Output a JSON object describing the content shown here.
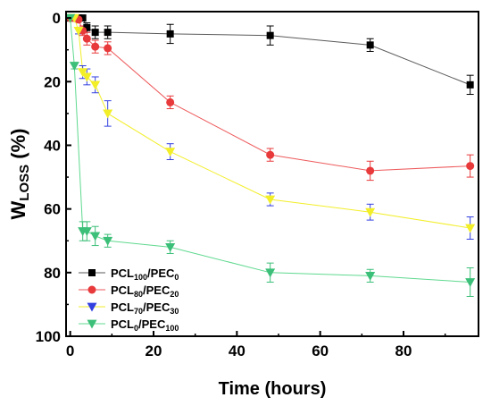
{
  "chart_data": {
    "type": "line",
    "xlabel": "Time (hours)",
    "ylabel_main": "W",
    "ylabel_sub": "LOSS",
    "ylabel_tail": " (%)",
    "xlim": [
      -1,
      98
    ],
    "ylim": [
      100,
      -2
    ],
    "y_axis_inverted": true,
    "x_ticks": [
      0,
      20,
      40,
      60,
      80
    ],
    "x_tick_labels": [
      "0",
      "20",
      "40",
      "60",
      "80"
    ],
    "y_ticks": [
      0,
      20,
      40,
      60,
      80,
      100
    ],
    "y_tick_labels": [
      "0",
      "20",
      "40",
      "60",
      "80",
      "100"
    ],
    "grid": false,
    "legend_position": "lower-left",
    "series": [
      {
        "key": "pcl100",
        "name_parts": [
          "PCL",
          "100",
          "/PEC",
          "0"
        ],
        "marker": "square",
        "color": "#000000",
        "line_color": "#5a5a5a",
        "points": [
          {
            "x": 0,
            "y": 0,
            "err": 0.5
          },
          {
            "x": 1,
            "y": 0,
            "err": 0.5
          },
          {
            "x": 2,
            "y": 0,
            "err": 0.5
          },
          {
            "x": 3,
            "y": 0,
            "err": 0.5
          },
          {
            "x": 4,
            "y": 3,
            "err": 1.5
          },
          {
            "x": 6,
            "y": 4.5,
            "err": 2
          },
          {
            "x": 9,
            "y": 4.5,
            "err": 2
          },
          {
            "x": 24,
            "y": 5,
            "err": 3
          },
          {
            "x": 48,
            "y": 5.5,
            "err": 3
          },
          {
            "x": 72,
            "y": 8.5,
            "err": 2
          },
          {
            "x": 96,
            "y": 21,
            "err": 3
          }
        ]
      },
      {
        "key": "pcl80",
        "name_parts": [
          "PCL",
          "80",
          "/PEC",
          "20"
        ],
        "marker": "circle",
        "color": "#e8393b",
        "line_color": "#ee5a5c",
        "points": [
          {
            "x": 0,
            "y": 0,
            "err": 0.5
          },
          {
            "x": 1,
            "y": 0,
            "err": 0.5
          },
          {
            "x": 2,
            "y": 0.5,
            "err": 0.5
          },
          {
            "x": 3,
            "y": 4,
            "err": 1.5
          },
          {
            "x": 4,
            "y": 6.5,
            "err": 2
          },
          {
            "x": 6,
            "y": 9,
            "err": 2
          },
          {
            "x": 9,
            "y": 9.5,
            "err": 2
          },
          {
            "x": 24,
            "y": 26.5,
            "err": 2
          },
          {
            "x": 48,
            "y": 43,
            "err": 2
          },
          {
            "x": 72,
            "y": 48,
            "err": 3
          },
          {
            "x": 96,
            "y": 46.5,
            "err": 3.5
          }
        ]
      },
      {
        "key": "pcl70",
        "name_parts": [
          "PCL",
          "70",
          "/PEC",
          "30"
        ],
        "marker": "triangle-down",
        "color": "#f2ee28",
        "error_color": "#3340e0",
        "line_color": "#f2ee28",
        "points": [
          {
            "x": 0,
            "y": 0,
            "err": 0.5
          },
          {
            "x": 1,
            "y": 0,
            "err": 0.5
          },
          {
            "x": 2,
            "y": 4,
            "err": 1
          },
          {
            "x": 3,
            "y": 17,
            "err": 2
          },
          {
            "x": 4,
            "y": 18.5,
            "err": 2.5
          },
          {
            "x": 6,
            "y": 21,
            "err": 2.5
          },
          {
            "x": 9,
            "y": 30,
            "err": 4
          },
          {
            "x": 24,
            "y": 42,
            "err": 2.5
          },
          {
            "x": 48,
            "y": 57,
            "err": 2
          },
          {
            "x": 72,
            "y": 61,
            "err": 2.5
          },
          {
            "x": 96,
            "y": 66,
            "err": 3.5
          }
        ]
      },
      {
        "key": "pcl0",
        "name_parts": [
          "PCL",
          "0",
          "/PEC",
          "100"
        ],
        "marker": "triangle-down",
        "color": "#3cbf78",
        "line_color": "#5fd98f",
        "points": [
          {
            "x": 0,
            "y": 0,
            "err": 0.5
          },
          {
            "x": 1,
            "y": 15,
            "err": 1
          },
          {
            "x": 3,
            "y": 67,
            "err": 3
          },
          {
            "x": 4,
            "y": 67,
            "err": 3
          },
          {
            "x": 6,
            "y": 68.5,
            "err": 3
          },
          {
            "x": 9,
            "y": 70,
            "err": 2
          },
          {
            "x": 24,
            "y": 72,
            "err": 2
          },
          {
            "x": 48,
            "y": 80,
            "err": 3
          },
          {
            "x": 72,
            "y": 81,
            "err": 2
          },
          {
            "x": 96,
            "y": 83,
            "err": 4.5
          }
        ]
      }
    ]
  }
}
